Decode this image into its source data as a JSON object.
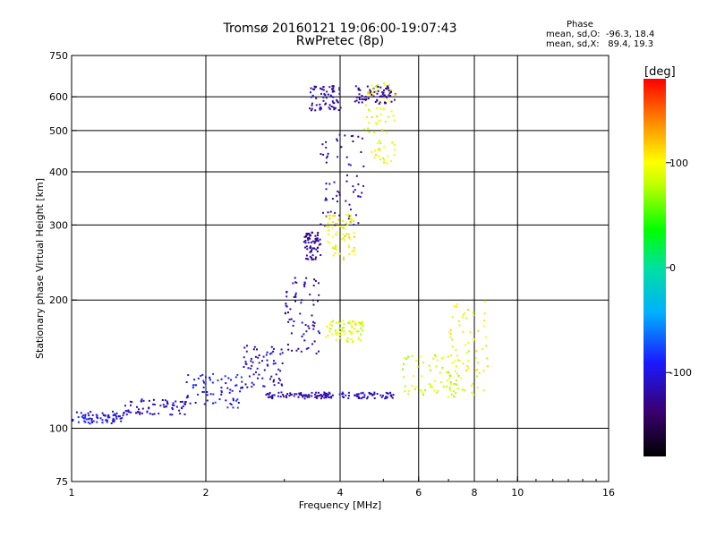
{
  "title_line1": "Tromsø 20160121 19:06:00-19:07:43",
  "title_line2": "RwPretec (8p)",
  "phase_box": {
    "heading": "Phase",
    "line_o": "mean, sd,O:  -96.3, 18.4",
    "line_x": "mean, sd,X:   89.4, 19.3"
  },
  "colorbar": {
    "unit_label": "[deg]",
    "range": [
      -180,
      180
    ],
    "ticks": [
      {
        "value": 100,
        "label": "100"
      },
      {
        "value": 0,
        "label": "0"
      },
      {
        "value": -100,
        "label": "-100"
      }
    ]
  },
  "chart_data": {
    "type": "scatter",
    "xlabel": "Frequency [MHz]",
    "ylabel": "Stationary phase Virtual Height [km]",
    "x_scale": "log",
    "y_scale": "log",
    "xlim": [
      1,
      16
    ],
    "ylim": [
      75,
      750
    ],
    "x_ticks": [
      {
        "value": 1,
        "label": "1"
      },
      {
        "value": 2,
        "label": "2"
      },
      {
        "value": 4,
        "label": "4"
      },
      {
        "value": 6,
        "label": "6"
      },
      {
        "value": 8,
        "label": "8"
      },
      {
        "value": 10,
        "label": "10"
      },
      {
        "value": 16,
        "label": "16"
      }
    ],
    "y_ticks": [
      {
        "value": 75,
        "label": "75"
      },
      {
        "value": 100,
        "label": "100"
      },
      {
        "value": 200,
        "label": "200"
      },
      {
        "value": 300,
        "label": "300"
      },
      {
        "value": 400,
        "label": "400"
      },
      {
        "value": 500,
        "label": "500"
      },
      {
        "value": 600,
        "label": "600"
      },
      {
        "value": 750,
        "label": "750"
      }
    ],
    "grid_x": [
      2,
      4,
      6,
      8,
      10
    ],
    "grid_y": [
      100,
      200,
      300,
      400,
      500,
      600
    ],
    "series": [
      {
        "mode": "O",
        "phase_deg": -100,
        "segments": [
          {
            "f_range": [
              1.0,
              1.3
            ],
            "h_range": [
              103,
              110
            ],
            "phase": -100
          },
          {
            "f_range": [
              1.3,
              1.8
            ],
            "h_range": [
              108,
              118
            ],
            "phase": -110
          },
          {
            "f_range": [
              1.8,
              2.4
            ],
            "h_range": [
              112,
              135
            ],
            "phase": -95
          },
          {
            "f_range": [
              2.4,
              3.0
            ],
            "h_range": [
              125,
              160
            ],
            "phase": -110
          },
          {
            "f_range": [
              2.7,
              3.8
            ],
            "h_range": [
              118,
              122
            ],
            "phase": -120
          },
          {
            "f_range": [
              3.0,
              3.6
            ],
            "h_range": [
              150,
              230
            ],
            "phase": -115
          },
          {
            "f_range": [
              3.3,
              3.6
            ],
            "h_range": [
              250,
              290
            ],
            "phase": -125
          },
          {
            "f_range": [
              3.6,
              4.5
            ],
            "h_range": [
              300,
              500
            ],
            "phase": -115
          },
          {
            "f_range": [
              3.6,
              5.3
            ],
            "h_range": [
              118,
              122
            ],
            "phase": -110
          },
          {
            "f_range": [
              4.3,
              5.3
            ],
            "h_range": [
              580,
              640
            ],
            "phase": -125
          },
          {
            "f_range": [
              3.4,
              4.0
            ],
            "h_range": [
              560,
              640
            ],
            "phase": -120
          }
        ]
      },
      {
        "mode": "X",
        "phase_deg": 90,
        "segments": [
          {
            "f_range": [
              3.7,
              4.3
            ],
            "h_range": [
              250,
              320
            ],
            "phase": 100
          },
          {
            "f_range": [
              3.7,
              4.5
            ],
            "h_range": [
              160,
              180
            ],
            "phase": 90
          },
          {
            "f_range": [
              4.5,
              5.3
            ],
            "h_range": [
              420,
              650
            ],
            "phase": 95
          },
          {
            "f_range": [
              5.5,
              7.5
            ],
            "h_range": [
              118,
              150
            ],
            "phase": 85
          },
          {
            "f_range": [
              7.0,
              8.6
            ],
            "h_range": [
              120,
              200
            ],
            "phase": 95
          }
        ]
      }
    ]
  }
}
